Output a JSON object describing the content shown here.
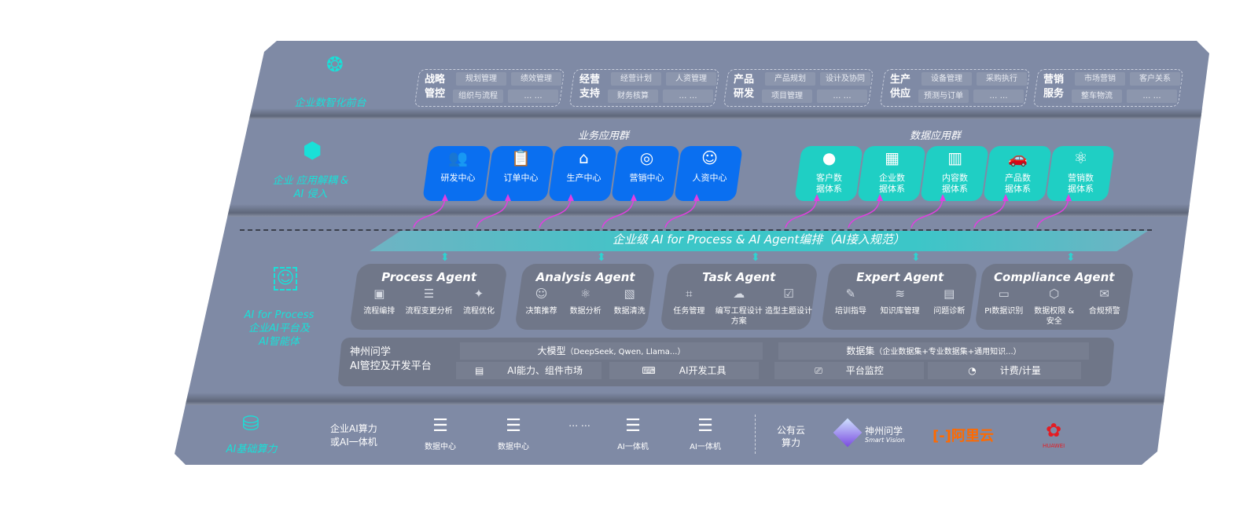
{
  "layers": {
    "front": "企业数智化前台",
    "apps": "企业 应用解耦 & AI 侵入",
    "process": [
      "AI for Process",
      "企业AI平台及",
      "AI智能体"
    ],
    "compute": "AI基础算力"
  },
  "front_groups": [
    {
      "title": "战略管控",
      "items": [
        "规划管理",
        "绩效管理",
        "组织与流程",
        "… …"
      ]
    },
    {
      "title": "经营支持",
      "items": [
        "经营计划",
        "人资管理",
        "财务核算",
        "… …"
      ]
    },
    {
      "title": "产品研发",
      "items": [
        "产品规划",
        "设计及协同",
        "项目管理",
        "… …"
      ]
    },
    {
      "title": "生产供应",
      "items": [
        "设备管理",
        "采购执行",
        "预测与订单",
        "… …"
      ]
    },
    {
      "title": "营销服务",
      "items": [
        "市场营销",
        "客户关系",
        "整车物流",
        "… …"
      ]
    }
  ],
  "biz_apps": {
    "title": "业务应用群",
    "items": [
      {
        "label": "研发中心",
        "icon": "users-icon"
      },
      {
        "label": "订单中心",
        "icon": "clipboard-icon"
      },
      {
        "label": "生产中心",
        "icon": "factory-icon"
      },
      {
        "label": "营销中心",
        "icon": "target-icon"
      },
      {
        "label": "人资中心",
        "icon": "person-icon"
      }
    ]
  },
  "data_apps": {
    "title": "数据应用群",
    "items": [
      {
        "label": "客户数据体系",
        "icon": "user-icon"
      },
      {
        "label": "企业数据体系",
        "icon": "building-icon"
      },
      {
        "label": "内容数据体系",
        "icon": "books-icon"
      },
      {
        "label": "产品数据体系",
        "icon": "car-icon"
      },
      {
        "label": "营销数据体系",
        "icon": "atom-icon"
      }
    ]
  },
  "banner": "企业级 AI for Process & AI Agent编排（AI接入规范）",
  "agents": [
    {
      "name": "Process Agent",
      "features": [
        "流程编排",
        "流程变更分析",
        "流程优化"
      ]
    },
    {
      "name": "Analysis Agent",
      "features": [
        "决策推荐",
        "数据分析",
        "数据清洗"
      ]
    },
    {
      "name": "Task Agent",
      "features": [
        "任务管理",
        "编写工程设计方案",
        "造型主题设计"
      ]
    },
    {
      "name": "Expert Agent",
      "features": [
        "培训指导",
        "知识库管理",
        "问题诊断"
      ]
    },
    {
      "name": "Compliance Agent",
      "features": [
        "PI数据识别",
        "数据权限 & 安全",
        "合规预警"
      ]
    }
  ],
  "platform": {
    "name": [
      "神州问学",
      "AI管控及开发平台"
    ],
    "model": "大模型",
    "model_note": "（DeepSeek, Qwen, Llama...）",
    "dataset": "数据集",
    "dataset_note": "（企业数据集+专业数据集+通用知识...）",
    "tools": [
      "AI能力、组件市场",
      "AI开发工具",
      "平台监控",
      "计费/计量"
    ]
  },
  "compute": {
    "enterprise": [
      "企业AI算力",
      "或AI一体机"
    ],
    "items": [
      "数据中心",
      "数据中心",
      "… …",
      "AI一体机",
      "AI一体机"
    ],
    "public": [
      "公有云",
      "算力"
    ],
    "vendors": {
      "shenzhou": "神州问学",
      "shenzhou_sub": "Smart Vision",
      "aliyun": "阿里云",
      "huawei": "HUAWEI"
    }
  },
  "colors": {
    "panel": "#7f8aa5",
    "accent": "#19e0d8",
    "biz": "#0a6ff0",
    "data": "#1fcfc4",
    "arrow": "#e040e0",
    "aliyun": "#ff6a00",
    "huawei": "#e41c23"
  }
}
